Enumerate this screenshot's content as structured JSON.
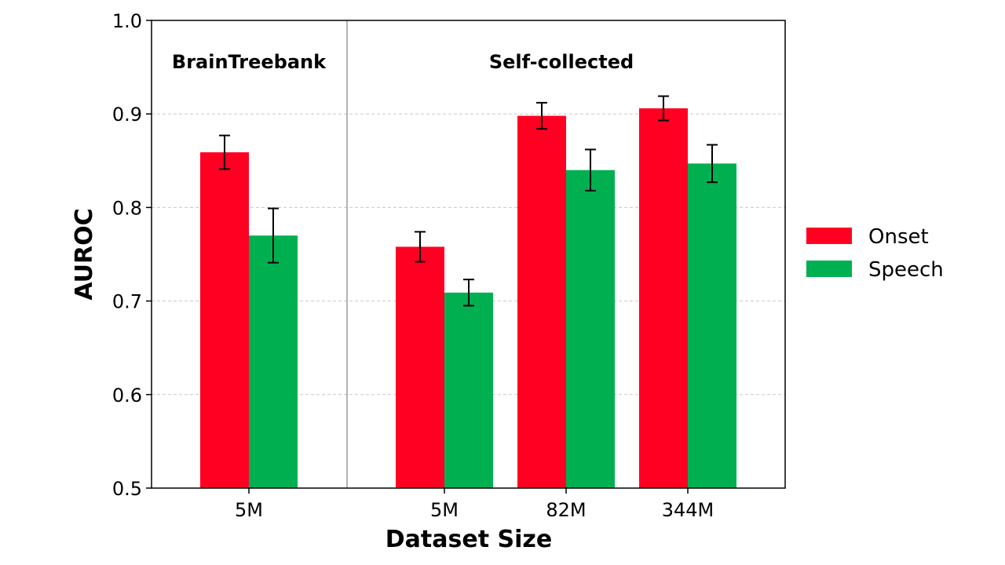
{
  "chart_data": {
    "type": "bar",
    "ylabel": "AUROC",
    "xlabel": "Dataset Size",
    "ylim": [
      0.5,
      1.0
    ],
    "yticks": [
      "0.5",
      "0.6",
      "0.7",
      "0.8",
      "0.9",
      "1.0"
    ],
    "grid": "horizontal dashed",
    "legend_position": "right",
    "groups": [
      {
        "title": "BrainTreebank",
        "categories": [
          "5M"
        ]
      },
      {
        "title": "Self-collected",
        "categories": [
          "5M",
          "82M",
          "344M"
        ]
      }
    ],
    "categories": [
      "5M",
      "5M",
      "82M",
      "344M"
    ],
    "series": [
      {
        "name": "Onset",
        "color": "#ff0022",
        "values": [
          0.859,
          0.758,
          0.898,
          0.906
        ],
        "errors": [
          0.018,
          0.016,
          0.014,
          0.013
        ]
      },
      {
        "name": "Speech",
        "color": "#00b050",
        "values": [
          0.77,
          0.709,
          0.84,
          0.847
        ],
        "errors": [
          0.029,
          0.014,
          0.022,
          0.02
        ]
      }
    ]
  }
}
